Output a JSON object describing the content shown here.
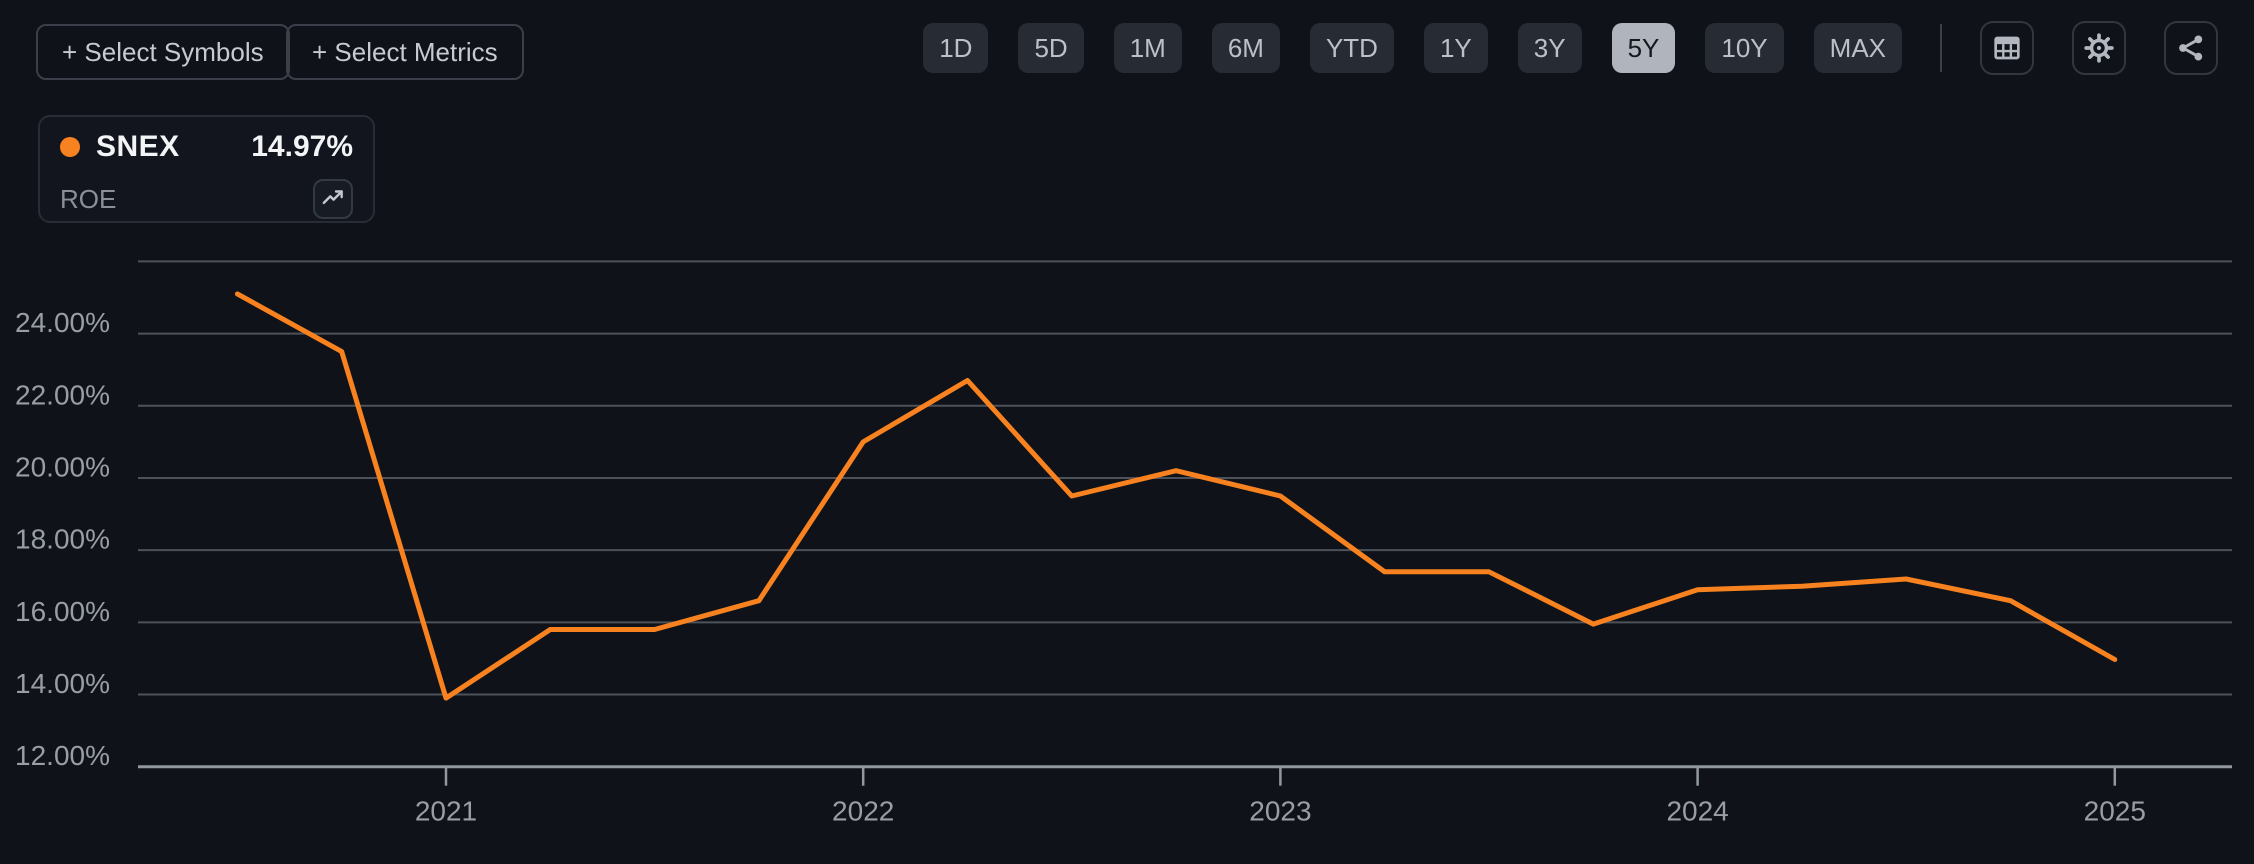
{
  "toolbar": {
    "select_symbols_label": "+ Select Symbols",
    "select_metrics_label": "+ Select Metrics",
    "ranges": [
      {
        "label": "1D",
        "selected": false
      },
      {
        "label": "5D",
        "selected": false
      },
      {
        "label": "1M",
        "selected": false
      },
      {
        "label": "6M",
        "selected": false
      },
      {
        "label": "YTD",
        "selected": false
      },
      {
        "label": "1Y",
        "selected": false
      },
      {
        "label": "3Y",
        "selected": false
      },
      {
        "label": "5Y",
        "selected": true
      },
      {
        "label": "10Y",
        "selected": false
      },
      {
        "label": "MAX",
        "selected": false
      }
    ],
    "icon_buttons": [
      "table-icon",
      "settings-icon",
      "share-icon"
    ]
  },
  "legend": {
    "symbol": "SNEX",
    "value": "14.97%",
    "metric": "ROE",
    "series_color": "#f7821f",
    "trend_icon": "trending-up-icon"
  },
  "chart_data": {
    "type": "line",
    "title": "",
    "xlabel": "",
    "ylabel": "",
    "legend_position": "top-left",
    "grid": true,
    "series": [
      {
        "name": "SNEX ROE",
        "color": "#f7821f",
        "x": [
          2020.5,
          2020.75,
          2021.0,
          2021.25,
          2021.5,
          2021.75,
          2022.0,
          2022.25,
          2022.5,
          2022.75,
          2023.0,
          2023.25,
          2023.5,
          2023.75,
          2024.0,
          2024.25,
          2024.5,
          2024.75,
          2025.0
        ],
        "values": [
          25.1,
          23.5,
          13.9,
          15.8,
          15.8,
          16.6,
          21.0,
          22.7,
          19.5,
          20.2,
          19.5,
          17.4,
          17.4,
          15.95,
          16.9,
          17.0,
          17.2,
          16.6,
          14.97
        ]
      }
    ],
    "ylim": [
      12,
      26
    ],
    "grid_values": [
      26,
      24,
      22,
      20,
      18,
      16,
      14,
      12
    ],
    "yticks": [
      {
        "value": 24,
        "label": "24.00%"
      },
      {
        "value": 22,
        "label": "22.00%"
      },
      {
        "value": 20,
        "label": "20.00%"
      },
      {
        "value": 18,
        "label": "18.00%"
      },
      {
        "value": 16,
        "label": "16.00%"
      },
      {
        "value": 14,
        "label": "14.00%"
      },
      {
        "value": 12,
        "label": "12.00%"
      }
    ],
    "xticks": [
      {
        "value": 2021,
        "label": "2021"
      },
      {
        "value": 2022,
        "label": "2022"
      },
      {
        "value": 2023,
        "label": "2023"
      },
      {
        "value": 2024,
        "label": "2024"
      },
      {
        "value": 2025,
        "label": "2025"
      }
    ]
  },
  "colors": {
    "background": "#0f1219",
    "gridline": "#4d525a",
    "axis": "#9298a0",
    "tick_text": "#999ea6",
    "accent_orange": "#f7821f"
  }
}
